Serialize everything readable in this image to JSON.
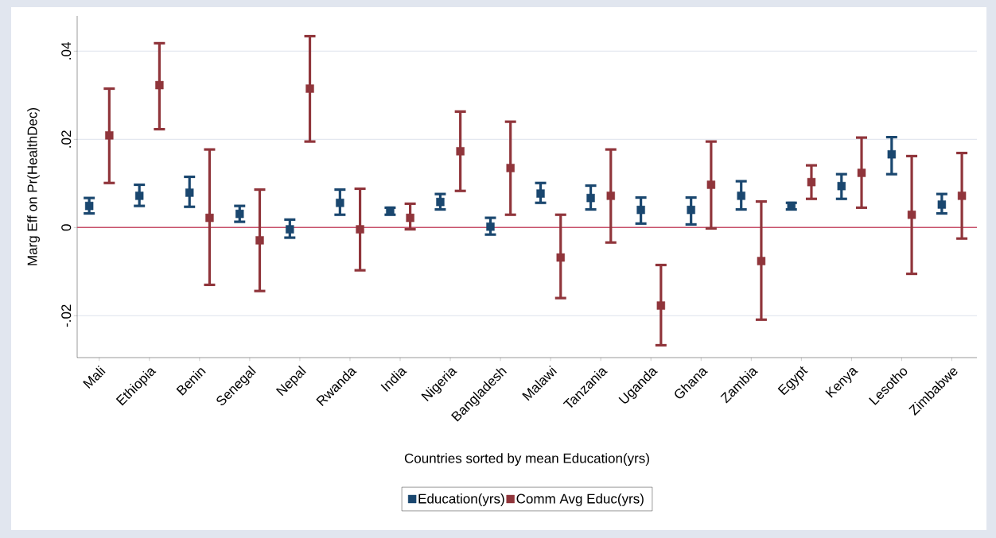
{
  "chart_data": {
    "type": "scatter",
    "xlabel": "Countries sorted by mean Education(yrs)",
    "ylabel": "Marg Eff on Pr(HealthDec)",
    "categories": [
      "Mali",
      "Ethiopia",
      "Benin",
      "Senegal",
      "Nepal",
      "Rwanda",
      "India",
      "Nigeria",
      "Bangladesh",
      "Malawi",
      "Tanzania",
      "Uganda",
      "Ghana",
      "Zambia",
      "Egypt",
      "Kenya",
      "Lesotho",
      "Zimbabwe"
    ],
    "series": [
      {
        "name": "Education(yrs)",
        "color": "#1a476f",
        "values": [
          0.0049,
          0.0072,
          0.0079,
          0.0031,
          -0.0004,
          0.0056,
          0.0038,
          0.0058,
          0.0002,
          0.0077,
          0.0067,
          0.004,
          0.004,
          0.0072,
          0.0049,
          0.0094,
          0.0166,
          0.0052
        ],
        "errors": [
          [
            0.0032,
            0.0067
          ],
          [
            0.0049,
            0.0097
          ],
          [
            0.0047,
            0.0115
          ],
          [
            0.0013,
            0.0049
          ],
          [
            -0.0023,
            0.0018
          ],
          [
            0.0029,
            0.0086
          ],
          [
            0.0029,
            0.0045
          ],
          [
            0.0041,
            0.0076
          ],
          [
            -0.0016,
            0.0022
          ],
          [
            0.0056,
            0.0101
          ],
          [
            0.0041,
            0.0095
          ],
          [
            0.0009,
            0.0068
          ],
          [
            0.0007,
            0.0068
          ],
          [
            0.0041,
            0.0105
          ],
          [
            0.0041,
            0.0056
          ],
          [
            0.0065,
            0.0121
          ],
          [
            0.0121,
            0.0205
          ],
          [
            0.0032,
            0.0076
          ]
        ]
      },
      {
        "name": "Comm Avg Educ(yrs)",
        "color": "#90353b",
        "values": [
          0.0209,
          0.0323,
          0.0022,
          -0.0029,
          0.0315,
          -0.0004,
          0.0022,
          0.0173,
          0.0135,
          -0.0068,
          0.0072,
          -0.0177,
          0.0097,
          -0.0076,
          0.0103,
          0.0124,
          0.0029,
          0.0072
        ],
        "errors": [
          [
            0.0101,
            0.0315
          ],
          [
            0.0223,
            0.0418
          ],
          [
            -0.013,
            0.0177
          ],
          [
            -0.0144,
            0.0086
          ],
          [
            0.0195,
            0.0434
          ],
          [
            -0.0097,
            0.0088
          ],
          [
            -0.0004,
            0.0054
          ],
          [
            0.0083,
            0.0263
          ],
          [
            0.0029,
            0.024
          ],
          [
            -0.016,
            0.0029
          ],
          [
            -0.0034,
            0.0177
          ],
          [
            -0.0267,
            -0.0085
          ],
          [
            -0.0002,
            0.0195
          ],
          [
            -0.0209,
            0.0059
          ],
          [
            0.0065,
            0.0141
          ],
          [
            0.0045,
            0.0204
          ],
          [
            -0.0105,
            0.0162
          ],
          [
            -0.0025,
            0.0169
          ]
        ]
      }
    ],
    "ylim": [
      -0.0295,
      0.048
    ],
    "yticks": [
      {
        "value": -0.02,
        "label": "-.02"
      },
      {
        "value": 0,
        "label": "0"
      },
      {
        "value": 0.02,
        "label": ".02"
      },
      {
        "value": 0.04,
        "label": ".04"
      }
    ],
    "ref_lines": [
      {
        "axis": "y",
        "value": 0,
        "color": "#c8506a"
      }
    ],
    "grid": "y",
    "legend": "bottom",
    "marker": "square"
  }
}
